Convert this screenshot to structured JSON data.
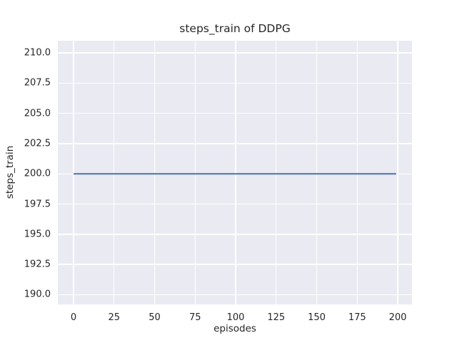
{
  "figure": {
    "background": "#ffffff",
    "text_color": "#262626"
  },
  "chart_data": {
    "type": "line",
    "title": "steps_train of DDPG",
    "xlabel": "episodes",
    "ylabel": "steps_train",
    "xlim": [
      -9.7,
      208.8
    ],
    "ylim": [
      189.2,
      211.0
    ],
    "xtick_labels": [
      "0",
      "25",
      "50",
      "75",
      "100",
      "125",
      "150",
      "175",
      "200"
    ],
    "ytick_labels": [
      "190.0",
      "192.5",
      "195.0",
      "197.5",
      "200.0",
      "202.5",
      "205.0",
      "207.5",
      "210.0"
    ],
    "grid": true,
    "legend": false,
    "plot_background": "#eaeaf2",
    "gridline_color": "#ffffff",
    "series": [
      {
        "name": "steps_train",
        "color": "#4c72b0",
        "linewidth": 2,
        "x": [
          0,
          199
        ],
        "y": [
          200,
          200
        ]
      }
    ]
  }
}
